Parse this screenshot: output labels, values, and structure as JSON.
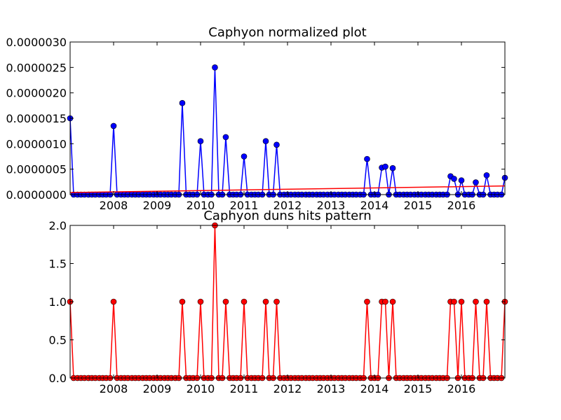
{
  "chart_data": [
    {
      "type": "line",
      "title": "Caphyon normalized plot",
      "xlabel": "",
      "ylabel": "",
      "xlim": [
        2007.0,
        2017.0
      ],
      "ylim": [
        0,
        3e-06
      ],
      "x_tick_values": [
        2008,
        2009,
        2010,
        2011,
        2012,
        2013,
        2014,
        2015,
        2016
      ],
      "x_tick_labels": [
        "2008",
        "2009",
        "2010",
        "2011",
        "2012",
        "2013",
        "2014",
        "2015",
        "2016"
      ],
      "y_tick_values": [
        0,
        5e-07,
        1e-06,
        1.5e-06,
        2e-06,
        2.5e-06,
        3e-06
      ],
      "y_tick_labels": [
        "0.0000000",
        "0.0000005",
        "0.0000010",
        "0.0000015",
        "0.0000020",
        "0.0000025",
        "0.0000030"
      ],
      "series": [
        {
          "color": "#0000ff",
          "marker": "circle",
          "points": [
            [
              2007.0,
              1.5e-06
            ],
            [
              2007.08,
              0
            ],
            [
              2007.17,
              0
            ],
            [
              2007.25,
              0
            ],
            [
              2007.33,
              0
            ],
            [
              2007.42,
              0
            ],
            [
              2007.5,
              0
            ],
            [
              2007.58,
              0
            ],
            [
              2007.67,
              0
            ],
            [
              2007.75,
              0
            ],
            [
              2007.83,
              0
            ],
            [
              2007.92,
              0
            ],
            [
              2008.0,
              1.35e-06
            ],
            [
              2008.08,
              0
            ],
            [
              2008.17,
              0
            ],
            [
              2008.25,
              0
            ],
            [
              2008.33,
              0
            ],
            [
              2008.42,
              0
            ],
            [
              2008.5,
              0
            ],
            [
              2008.58,
              0
            ],
            [
              2008.67,
              0
            ],
            [
              2008.75,
              0
            ],
            [
              2008.83,
              0
            ],
            [
              2008.92,
              0
            ],
            [
              2009.0,
              0
            ],
            [
              2009.08,
              0
            ],
            [
              2009.17,
              0
            ],
            [
              2009.25,
              0
            ],
            [
              2009.33,
              0
            ],
            [
              2009.42,
              0
            ],
            [
              2009.5,
              0
            ],
            [
              2009.58,
              1.8e-06
            ],
            [
              2009.67,
              0
            ],
            [
              2009.75,
              0
            ],
            [
              2009.83,
              0
            ],
            [
              2009.92,
              0
            ],
            [
              2010.0,
              1.05e-06
            ],
            [
              2010.08,
              0
            ],
            [
              2010.17,
              0
            ],
            [
              2010.25,
              0
            ],
            [
              2010.33,
              2.5e-06
            ],
            [
              2010.42,
              0
            ],
            [
              2010.5,
              0
            ],
            [
              2010.58,
              1.13e-06
            ],
            [
              2010.67,
              0
            ],
            [
              2010.75,
              0
            ],
            [
              2010.83,
              0
            ],
            [
              2010.92,
              0
            ],
            [
              2011.0,
              7.5e-07
            ],
            [
              2011.08,
              0
            ],
            [
              2011.17,
              0
            ],
            [
              2011.25,
              0
            ],
            [
              2011.33,
              0
            ],
            [
              2011.42,
              0
            ],
            [
              2011.5,
              1.05e-06
            ],
            [
              2011.58,
              0
            ],
            [
              2011.67,
              0
            ],
            [
              2011.75,
              9.8e-07
            ],
            [
              2011.83,
              0
            ],
            [
              2011.92,
              0
            ],
            [
              2012.0,
              0
            ],
            [
              2012.08,
              0
            ],
            [
              2012.17,
              0
            ],
            [
              2012.25,
              0
            ],
            [
              2012.33,
              0
            ],
            [
              2012.42,
              0
            ],
            [
              2012.5,
              0
            ],
            [
              2012.58,
              0
            ],
            [
              2012.67,
              0
            ],
            [
              2012.75,
              0
            ],
            [
              2012.83,
              0
            ],
            [
              2012.92,
              0
            ],
            [
              2013.0,
              0
            ],
            [
              2013.08,
              0
            ],
            [
              2013.17,
              0
            ],
            [
              2013.25,
              0
            ],
            [
              2013.33,
              0
            ],
            [
              2013.42,
              0
            ],
            [
              2013.5,
              0
            ],
            [
              2013.58,
              0
            ],
            [
              2013.67,
              0
            ],
            [
              2013.75,
              0
            ],
            [
              2013.83,
              7e-07
            ],
            [
              2013.92,
              0
            ],
            [
              2014.0,
              0
            ],
            [
              2014.08,
              0
            ],
            [
              2014.17,
              5.3e-07
            ],
            [
              2014.25,
              5.5e-07
            ],
            [
              2014.33,
              0
            ],
            [
              2014.42,
              5.2e-07
            ],
            [
              2014.5,
              0
            ],
            [
              2014.58,
              0
            ],
            [
              2014.67,
              0
            ],
            [
              2014.75,
              0
            ],
            [
              2014.83,
              0
            ],
            [
              2014.92,
              0
            ],
            [
              2015.0,
              0
            ],
            [
              2015.08,
              0
            ],
            [
              2015.17,
              0
            ],
            [
              2015.25,
              0
            ],
            [
              2015.33,
              0
            ],
            [
              2015.42,
              0
            ],
            [
              2015.5,
              0
            ],
            [
              2015.58,
              0
            ],
            [
              2015.67,
              0
            ],
            [
              2015.75,
              3.6e-07
            ],
            [
              2015.83,
              3.1e-07
            ],
            [
              2015.92,
              0
            ],
            [
              2016.0,
              2.8e-07
            ],
            [
              2016.08,
              0
            ],
            [
              2016.17,
              0
            ],
            [
              2016.25,
              0
            ],
            [
              2016.33,
              2.4e-07
            ],
            [
              2016.42,
              0
            ],
            [
              2016.5,
              0
            ],
            [
              2016.58,
              3.8e-07
            ],
            [
              2016.67,
              0
            ],
            [
              2016.75,
              0
            ],
            [
              2016.83,
              0
            ],
            [
              2016.92,
              0
            ],
            [
              2017.0,
              3.3e-07
            ]
          ]
        },
        {
          "color": "#ff0000",
          "marker": "none",
          "points": [
            [
              2007.0,
              4e-08
            ],
            [
              2017.0,
              1.7e-07
            ]
          ]
        }
      ]
    },
    {
      "type": "line",
      "title": "Caphyon duns hits pattern",
      "xlabel": "",
      "ylabel": "",
      "xlim": [
        2007.0,
        2017.0
      ],
      "ylim": [
        0,
        2.0
      ],
      "x_tick_values": [
        2008,
        2009,
        2010,
        2011,
        2012,
        2013,
        2014,
        2015,
        2016
      ],
      "x_tick_labels": [
        "2008",
        "2009",
        "2010",
        "2011",
        "2012",
        "2013",
        "2014",
        "2015",
        "2016"
      ],
      "y_tick_values": [
        0,
        0.5,
        1.0,
        1.5,
        2.0
      ],
      "y_tick_labels": [
        "0.0",
        "0.5",
        "1.0",
        "1.5",
        "2.0"
      ],
      "series": [
        {
          "color": "#ff0000",
          "marker": "circle",
          "points": [
            [
              2007.0,
              1
            ],
            [
              2007.08,
              0
            ],
            [
              2007.17,
              0
            ],
            [
              2007.25,
              0
            ],
            [
              2007.33,
              0
            ],
            [
              2007.42,
              0
            ],
            [
              2007.5,
              0
            ],
            [
              2007.58,
              0
            ],
            [
              2007.67,
              0
            ],
            [
              2007.75,
              0
            ],
            [
              2007.83,
              0
            ],
            [
              2007.92,
              0
            ],
            [
              2008.0,
              1
            ],
            [
              2008.08,
              0
            ],
            [
              2008.17,
              0
            ],
            [
              2008.25,
              0
            ],
            [
              2008.33,
              0
            ],
            [
              2008.42,
              0
            ],
            [
              2008.5,
              0
            ],
            [
              2008.58,
              0
            ],
            [
              2008.67,
              0
            ],
            [
              2008.75,
              0
            ],
            [
              2008.83,
              0
            ],
            [
              2008.92,
              0
            ],
            [
              2009.0,
              0
            ],
            [
              2009.08,
              0
            ],
            [
              2009.17,
              0
            ],
            [
              2009.25,
              0
            ],
            [
              2009.33,
              0
            ],
            [
              2009.42,
              0
            ],
            [
              2009.5,
              0
            ],
            [
              2009.58,
              1
            ],
            [
              2009.67,
              0
            ],
            [
              2009.75,
              0
            ],
            [
              2009.83,
              0
            ],
            [
              2009.92,
              0
            ],
            [
              2010.0,
              1
            ],
            [
              2010.08,
              0
            ],
            [
              2010.17,
              0
            ],
            [
              2010.25,
              0
            ],
            [
              2010.33,
              2
            ],
            [
              2010.42,
              0
            ],
            [
              2010.5,
              0
            ],
            [
              2010.58,
              1
            ],
            [
              2010.67,
              0
            ],
            [
              2010.75,
              0
            ],
            [
              2010.83,
              0
            ],
            [
              2010.92,
              0
            ],
            [
              2011.0,
              1
            ],
            [
              2011.08,
              0
            ],
            [
              2011.17,
              0
            ],
            [
              2011.25,
              0
            ],
            [
              2011.33,
              0
            ],
            [
              2011.42,
              0
            ],
            [
              2011.5,
              1
            ],
            [
              2011.58,
              0
            ],
            [
              2011.67,
              0
            ],
            [
              2011.75,
              1
            ],
            [
              2011.83,
              0
            ],
            [
              2011.92,
              0
            ],
            [
              2012.0,
              0
            ],
            [
              2012.08,
              0
            ],
            [
              2012.17,
              0
            ],
            [
              2012.25,
              0
            ],
            [
              2012.33,
              0
            ],
            [
              2012.42,
              0
            ],
            [
              2012.5,
              0
            ],
            [
              2012.58,
              0
            ],
            [
              2012.67,
              0
            ],
            [
              2012.75,
              0
            ],
            [
              2012.83,
              0
            ],
            [
              2012.92,
              0
            ],
            [
              2013.0,
              0
            ],
            [
              2013.08,
              0
            ],
            [
              2013.17,
              0
            ],
            [
              2013.25,
              0
            ],
            [
              2013.33,
              0
            ],
            [
              2013.42,
              0
            ],
            [
              2013.5,
              0
            ],
            [
              2013.58,
              0
            ],
            [
              2013.67,
              0
            ],
            [
              2013.75,
              0
            ],
            [
              2013.83,
              1
            ],
            [
              2013.92,
              0
            ],
            [
              2014.0,
              0
            ],
            [
              2014.08,
              0
            ],
            [
              2014.17,
              1
            ],
            [
              2014.25,
              1
            ],
            [
              2014.33,
              0
            ],
            [
              2014.42,
              1
            ],
            [
              2014.5,
              0
            ],
            [
              2014.58,
              0
            ],
            [
              2014.67,
              0
            ],
            [
              2014.75,
              0
            ],
            [
              2014.83,
              0
            ],
            [
              2014.92,
              0
            ],
            [
              2015.0,
              0
            ],
            [
              2015.08,
              0
            ],
            [
              2015.17,
              0
            ],
            [
              2015.25,
              0
            ],
            [
              2015.33,
              0
            ],
            [
              2015.42,
              0
            ],
            [
              2015.5,
              0
            ],
            [
              2015.58,
              0
            ],
            [
              2015.67,
              0
            ],
            [
              2015.75,
              1
            ],
            [
              2015.83,
              1
            ],
            [
              2015.92,
              0
            ],
            [
              2016.0,
              1
            ],
            [
              2016.08,
              0
            ],
            [
              2016.17,
              0
            ],
            [
              2016.25,
              0
            ],
            [
              2016.33,
              1
            ],
            [
              2016.42,
              0
            ],
            [
              2016.5,
              0
            ],
            [
              2016.58,
              1
            ],
            [
              2016.67,
              0
            ],
            [
              2016.75,
              0
            ],
            [
              2016.83,
              0
            ],
            [
              2016.92,
              0
            ],
            [
              2017.0,
              1
            ]
          ]
        }
      ]
    }
  ]
}
